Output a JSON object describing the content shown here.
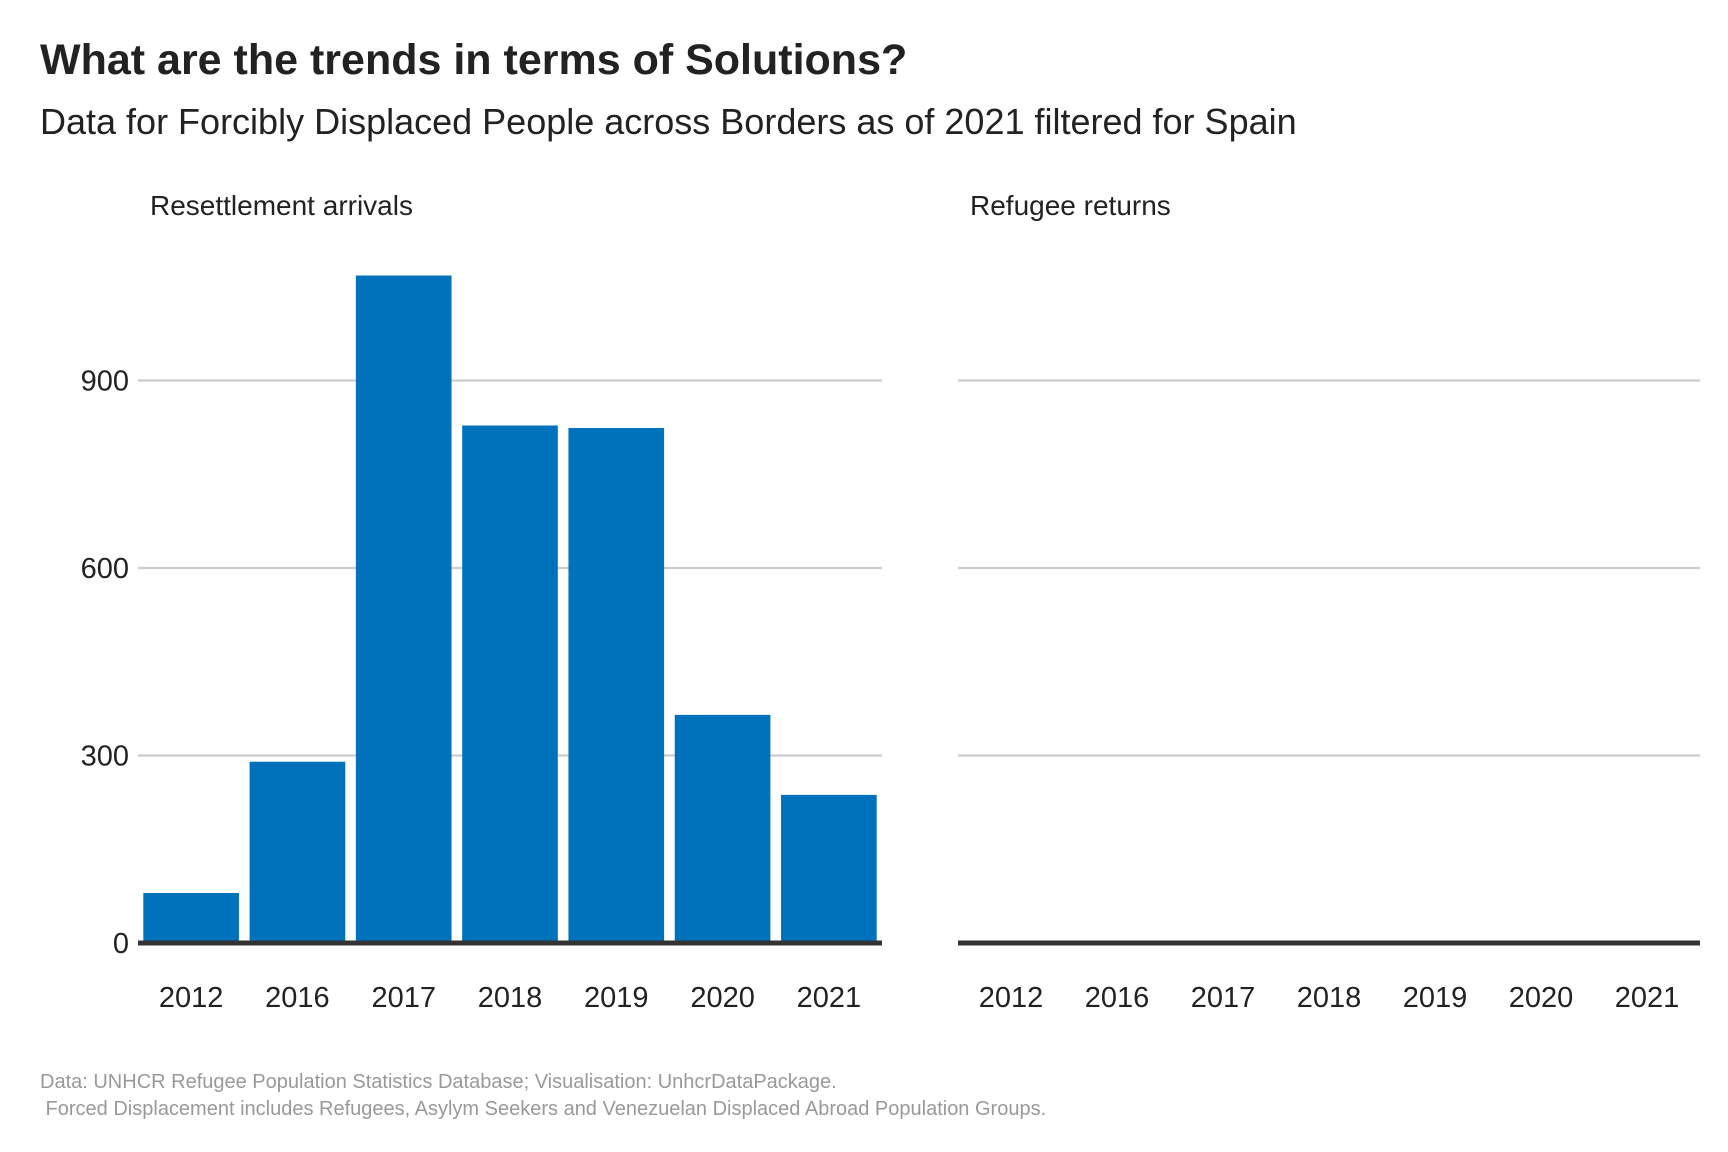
{
  "title": "What are the trends in terms of Solutions?",
  "subtitle": "Data for Forcibly Displaced People across Borders as of 2021 filtered for Spain",
  "caption_line1": "Data: UNHCR Refugee Population Statistics Database; Visualisation: UnhcrDataPackage.",
  "caption_line2": " Forced Displacement includes Refugees, Asylym Seekers and Venezuelan Displaced Abroad Population Groups.",
  "colors": {
    "bar": "#0072BC",
    "grid": "#cccccc",
    "baseline": "#333333"
  },
  "chart_data": [
    {
      "type": "bar",
      "title": "Resettlement arrivals",
      "categories": [
        "2012",
        "2016",
        "2017",
        "2018",
        "2019",
        "2020",
        "2021"
      ],
      "values": [
        80,
        290,
        1068,
        828,
        824,
        365,
        237
      ],
      "yticks": [
        0,
        300,
        600,
        900
      ],
      "ylim": [
        0,
        1120
      ],
      "grid": true,
      "show_y_axis": true
    },
    {
      "type": "bar",
      "title": "Refugee returns",
      "categories": [
        "2012",
        "2016",
        "2017",
        "2018",
        "2019",
        "2020",
        "2021"
      ],
      "values": [
        0,
        0,
        0,
        0,
        0,
        0,
        0
      ],
      "yticks": [
        0,
        300,
        600,
        900
      ],
      "ylim": [
        0,
        1120
      ],
      "grid": true,
      "show_y_axis": false
    }
  ]
}
